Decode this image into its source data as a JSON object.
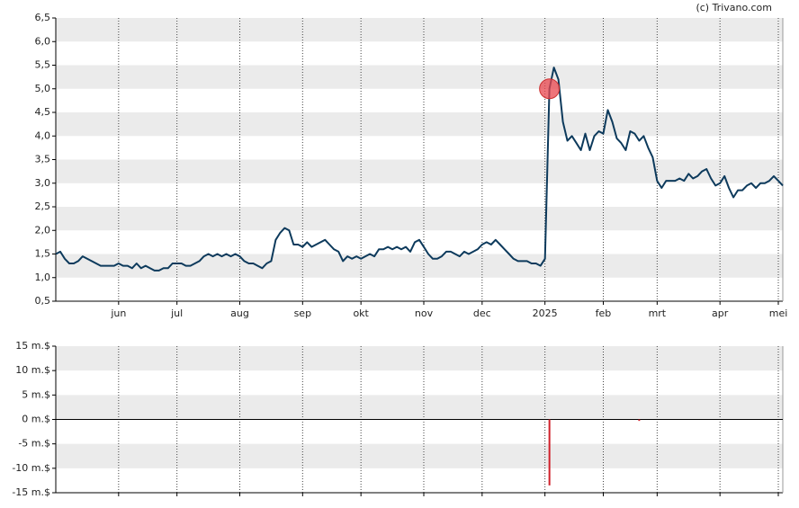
{
  "chart_data": [
    {
      "type": "line",
      "annotation": "(c) Trivano.com",
      "color": "#0d3a5c",
      "highlight_color": "#e8454e",
      "xlim": [
        0,
        162
      ],
      "xticks": [
        {
          "value": 14,
          "label": "jun"
        },
        {
          "value": 27,
          "label": "jul"
        },
        {
          "value": 41,
          "label": "aug"
        },
        {
          "value": 55,
          "label": "sep"
        },
        {
          "value": 68,
          "label": "okt"
        },
        {
          "value": 82,
          "label": "nov"
        },
        {
          "value": 95,
          "label": "dec"
        },
        {
          "value": 109,
          "label": "2025"
        },
        {
          "value": 122,
          "label": "feb"
        },
        {
          "value": 134,
          "label": "mrt"
        },
        {
          "value": 148,
          "label": "apr"
        },
        {
          "value": 161,
          "label": "mei"
        }
      ],
      "ylim": [
        0.5,
        6.5
      ],
      "yticks": [
        {
          "value": 6.5,
          "label": "6,5"
        },
        {
          "value": 6.0,
          "label": "6,0"
        },
        {
          "value": 5.5,
          "label": "5,5"
        },
        {
          "value": 5.0,
          "label": "5,0"
        },
        {
          "value": 4.5,
          "label": "4,5"
        },
        {
          "value": 4.0,
          "label": "4,0"
        },
        {
          "value": 3.5,
          "label": "3,5"
        },
        {
          "value": 3.0,
          "label": "3,0"
        },
        {
          "value": 2.5,
          "label": "2,5"
        },
        {
          "value": 2.0,
          "label": "2,0"
        },
        {
          "value": 1.5,
          "label": "1,5"
        },
        {
          "value": 1.0,
          "label": "1,0"
        },
        {
          "value": 0.5,
          "label": "0,5"
        }
      ],
      "grid": true,
      "values": [
        1.5,
        1.55,
        1.4,
        1.3,
        1.3,
        1.35,
        1.45,
        1.4,
        1.35,
        1.3,
        1.25,
        1.25,
        1.25,
        1.25,
        1.3,
        1.25,
        1.25,
        1.2,
        1.3,
        1.2,
        1.25,
        1.2,
        1.15,
        1.15,
        1.2,
        1.2,
        1.3,
        1.3,
        1.3,
        1.25,
        1.25,
        1.3,
        1.35,
        1.45,
        1.5,
        1.45,
        1.5,
        1.45,
        1.5,
        1.45,
        1.5,
        1.45,
        1.35,
        1.3,
        1.3,
        1.25,
        1.2,
        1.3,
        1.35,
        1.8,
        1.95,
        2.05,
        2.0,
        1.7,
        1.7,
        1.65,
        1.75,
        1.65,
        1.7,
        1.75,
        1.8,
        1.7,
        1.6,
        1.55,
        1.35,
        1.45,
        1.4,
        1.45,
        1.4,
        1.45,
        1.5,
        1.45,
        1.6,
        1.6,
        1.65,
        1.6,
        1.65,
        1.6,
        1.65,
        1.55,
        1.75,
        1.8,
        1.65,
        1.5,
        1.4,
        1.4,
        1.45,
        1.55,
        1.55,
        1.5,
        1.45,
        1.55,
        1.5,
        1.55,
        1.6,
        1.7,
        1.75,
        1.7,
        1.8,
        1.7,
        1.6,
        1.5,
        1.4,
        1.35,
        1.35,
        1.35,
        1.3,
        1.3,
        1.25,
        1.4,
        5.0,
        5.45,
        5.2,
        4.3,
        3.9,
        4.0,
        3.85,
        3.7,
        4.05,
        3.7,
        4.0,
        4.1,
        4.05,
        4.55,
        4.3,
        3.95,
        3.85,
        3.7,
        4.1,
        4.05,
        3.9,
        4.0,
        3.75,
        3.55,
        3.05,
        2.9,
        3.05,
        3.05,
        3.05,
        3.1,
        3.05,
        3.2,
        3.1,
        3.15,
        3.25,
        3.3,
        3.1,
        2.95,
        3.0,
        3.15,
        2.9,
        2.7,
        2.85,
        2.85,
        2.95,
        3.0,
        2.9,
        3.0,
        3.0,
        3.05,
        3.15,
        3.05,
        2.95
      ]
    },
    {
      "type": "bar",
      "color": "#d0202a",
      "xlim": [
        0,
        162
      ],
      "xticks": [
        14,
        27,
        41,
        55,
        68,
        82,
        95,
        109,
        122,
        134,
        148,
        161
      ],
      "ylim": [
        -15,
        15
      ],
      "yticks": [
        {
          "value": 15,
          "label": "15 m.$"
        },
        {
          "value": 10,
          "label": "10 m.$"
        },
        {
          "value": 5,
          "label": "5 m.$"
        },
        {
          "value": 0,
          "label": "0 m.$"
        },
        {
          "value": -5,
          "label": "-5 m.$"
        },
        {
          "value": -10,
          "label": "-10 m.$"
        },
        {
          "value": -15,
          "label": "-15 m.$"
        }
      ],
      "grid": true,
      "x": [
        110,
        130
      ],
      "values": [
        -13.5,
        -0.3
      ]
    }
  ]
}
